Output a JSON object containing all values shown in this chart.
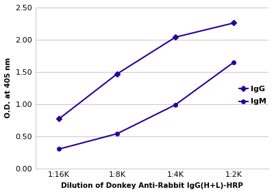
{
  "x_labels": [
    "1:16K",
    "1:8K",
    "1:4K",
    "1:2K"
  ],
  "x_values": [
    0,
    1,
    2,
    3
  ],
  "IgG_values": [
    0.77,
    1.47,
    2.04,
    2.26
  ],
  "IgM_values": [
    0.3,
    0.54,
    0.99,
    1.65
  ],
  "line_color": "#2b0096",
  "IgG_marker": "D",
  "IgM_marker": "o",
  "marker_size": 4,
  "line_width": 1.5,
  "ylabel": "O.D. at 405 nm",
  "xlabel": "Dilution of Donkey Anti-Rabbit IgG(H+L)-HRP",
  "ylim": [
    0.0,
    2.5
  ],
  "yticks": [
    0.0,
    0.5,
    1.0,
    1.5,
    2.0,
    2.5
  ],
  "legend_IgG": "IgG",
  "legend_IgM": "IgM",
  "background_color": "#ffffff",
  "grid_color": "#cccccc",
  "axis_fontsize": 7.5,
  "tick_fontsize": 8,
  "legend_fontsize": 8
}
